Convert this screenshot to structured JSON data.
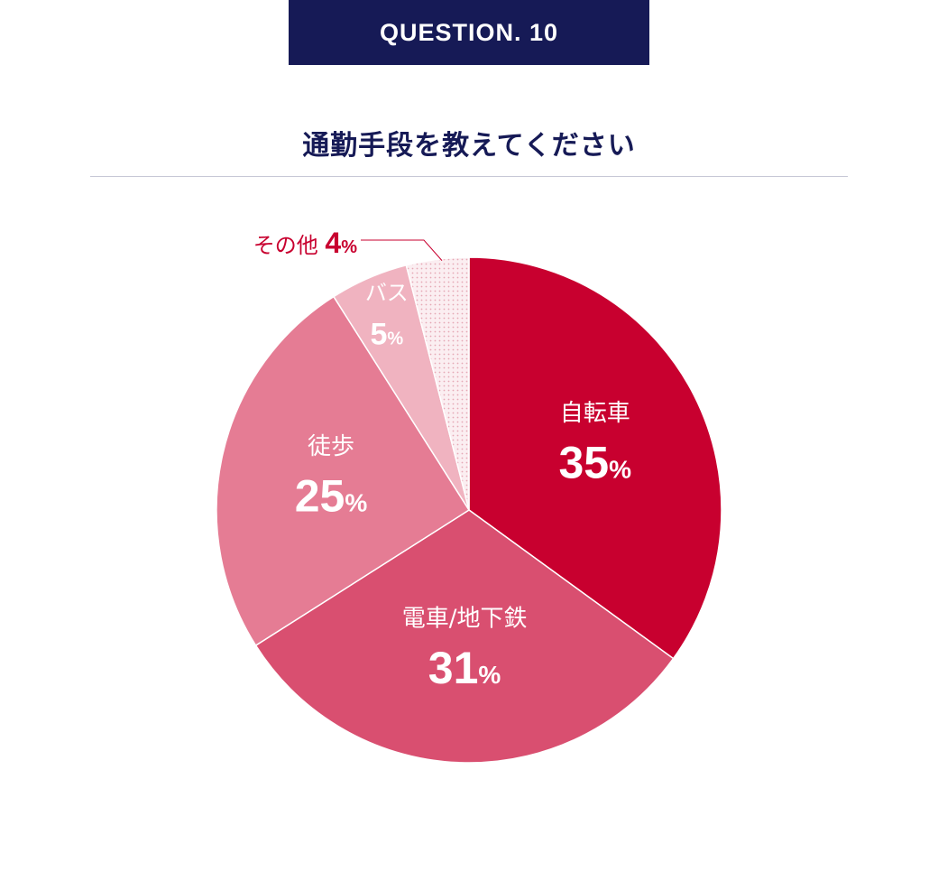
{
  "header": {
    "badge": "QUESTION. 10",
    "question": "通勤手段を教えてください"
  },
  "chart_data": {
    "type": "pie",
    "title": "通勤手段を教えてください",
    "start": "12 o'clock, clockwise",
    "slices": [
      {
        "label": "自転車",
        "value": 35,
        "percent_suffix": "%",
        "color": "#c8002f"
      },
      {
        "label": "電車/地下鉄",
        "value": 31,
        "percent_suffix": "%",
        "color": "#d94f70"
      },
      {
        "label": "徒歩",
        "value": 25,
        "percent_suffix": "%",
        "color": "#e57c94"
      },
      {
        "label": "バス",
        "value": 5,
        "percent_suffix": "%",
        "color": "#f0b3c0"
      },
      {
        "label": "その他",
        "value": 4,
        "percent_suffix": "%",
        "color": "#f9e2e7",
        "pattern": "dotted",
        "callout": "outside-left",
        "label_color": "#c8002f"
      }
    ],
    "colors": {
      "label_on_slice": "#ffffff",
      "separator": "#ffffff"
    }
  }
}
